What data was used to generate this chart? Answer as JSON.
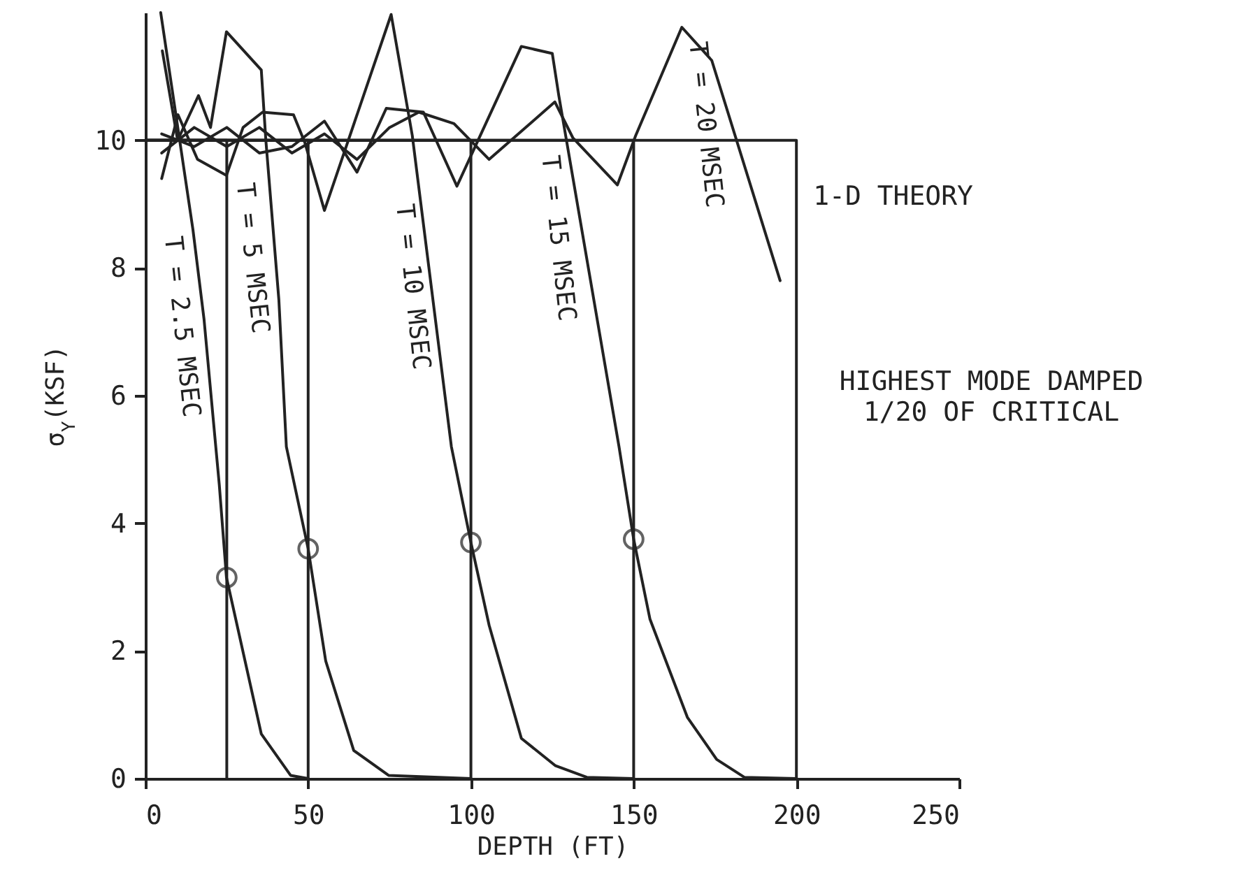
{
  "chart_data": {
    "type": "line",
    "xlabel": "DEPTH (FT)",
    "ylabel": "σ$_{Y}$(KSF)",
    "xlim": [
      0,
      250
    ],
    "xticks": [
      0,
      50,
      100,
      150,
      200,
      250
    ],
    "ylim": [
      0,
      12
    ],
    "yticks": [
      0,
      2,
      4,
      6,
      8,
      10
    ],
    "line_style": "solid",
    "annotations": [
      "HIGHEST MODE DAMPED\n1/20 OF CRITICAL"
    ],
    "series": [
      {
        "name": "T = 2.5 MSEC",
        "color": "#222222",
        "x": [
          4.7,
          14.6,
          18,
          22.7,
          24.9,
          35.6,
          44.6,
          50
        ],
        "values": [
          12.0,
          8.6,
          7.2,
          4.6,
          3.15,
          0.7,
          0.05,
          0
        ]
      },
      {
        "name": "T = 5 MSEC",
        "color": "#222222",
        "x": [
          5.2,
          9.9,
          16.3,
          20,
          24.9,
          35.6,
          37,
          41,
          43.3,
          50,
          55.4,
          64,
          74.7,
          100
        ],
        "values": [
          11.4,
          10.0,
          10.7,
          10.2,
          11.7,
          11.1,
          10,
          7.5,
          5.2,
          3.6,
          1.84,
          0.44,
          0.05,
          0
        ]
      },
      {
        "name": "T = 10 MSEC",
        "color": "#222222",
        "x": [
          5,
          10,
          16,
          24.9,
          30,
          36,
          45.5,
          49,
          55,
          75.5,
          82,
          94,
          100,
          105.6,
          115.5,
          126,
          135.6,
          150
        ],
        "values": [
          9.4,
          10.4,
          9.7,
          9.45,
          10.2,
          10.44,
          10.4,
          9.96,
          8.9,
          11.97,
          10.07,
          5.2,
          3.7,
          2.4,
          0.63,
          0.2,
          0.02,
          0
        ]
      },
      {
        "name": "T = 15 MSEC",
        "color": "#222222",
        "x": [
          5,
          15,
          25,
          35,
          45,
          55,
          65,
          74,
          85.4,
          95.7,
          115.5,
          125,
          127,
          145.5,
          150,
          155,
          166.5,
          175.5,
          184,
          200
        ],
        "values": [
          10.1,
          9.9,
          10.2,
          9.8,
          9.9,
          10.3,
          9.5,
          10.5,
          10.44,
          9.28,
          11.47,
          11.36,
          10.7,
          5.2,
          3.75,
          2.5,
          0.96,
          0.3,
          0.02,
          0
        ]
      },
      {
        "name": "T = 20 MSEC",
        "color": "#222222",
        "x": [
          5,
          15,
          25,
          35,
          45,
          55,
          65,
          75,
          84,
          94.8,
          105.6,
          125.8,
          131.3,
          145,
          150.6,
          164.8,
          174,
          195
        ],
        "values": [
          9.8,
          10.2,
          9.9,
          10.2,
          9.8,
          10.1,
          9.7,
          10.2,
          10.44,
          10.26,
          9.7,
          10.6,
          10.04,
          9.3,
          10.07,
          11.77,
          11.25,
          7.8
        ]
      },
      {
        "name": "1-D THEORY",
        "color": "#222222",
        "x": [
          0,
          200,
          200
        ],
        "values": [
          10,
          10,
          0
        ]
      },
      {
        "color": "#222222",
        "x": [
          0,
          150,
          150
        ],
        "values": [
          10,
          10,
          0
        ]
      },
      {
        "color": "#222222",
        "x": [
          0,
          100,
          100
        ],
        "values": [
          10,
          10,
          0
        ]
      },
      {
        "color": "#222222",
        "x": [
          0,
          50,
          50
        ],
        "values": [
          10,
          10,
          0
        ]
      },
      {
        "color": "#222222",
        "x": [
          0,
          25,
          25
        ],
        "values": [
          10,
          10,
          0
        ]
      },
      {
        "type": "scatter",
        "marker": "circle",
        "color": "#222222",
        "x": [
          25,
          50,
          100,
          150
        ],
        "values": [
          3.15,
          3.6,
          3.7,
          3.75
        ]
      }
    ]
  }
}
